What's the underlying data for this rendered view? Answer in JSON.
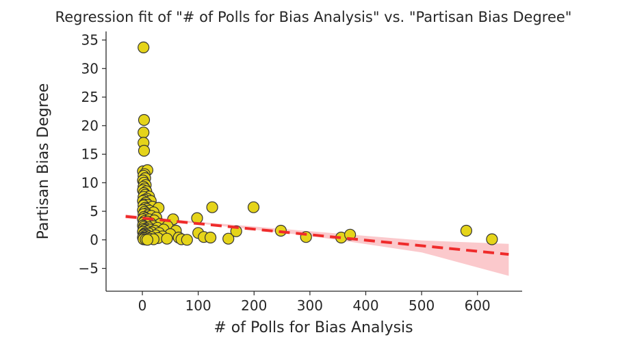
{
  "chart_data": {
    "type": "scatter",
    "title": "Regression fit of \"# of Polls for Bias Analysis\" vs. \"Partisan Bias Degree\"",
    "xlabel": "# of Polls for Bias Analysis",
    "ylabel": "Partisan Bias Degree",
    "xlim": [
      -65,
      680
    ],
    "ylim": [
      -9,
      36.5
    ],
    "xticks": [
      0,
      100,
      200,
      300,
      400,
      500,
      600
    ],
    "yticks": [
      -5,
      0,
      5,
      10,
      15,
      20,
      25,
      30,
      35
    ],
    "xtick_labels": [
      "0",
      "100",
      "200",
      "300",
      "400",
      "500",
      "600"
    ],
    "ytick_labels": [
      "−5",
      "0",
      "5",
      "10",
      "15",
      "20",
      "25",
      "30",
      "35"
    ],
    "grid": false,
    "legend": "none",
    "colors": {
      "point_fill": "#e5d41a",
      "point_edge": "#333333",
      "regression_line": "#ef2b2b",
      "confidence_band": "#fbc9cc"
    },
    "series": [
      {
        "kind": "points",
        "points": [
          [
            2,
            33.7
          ],
          [
            3,
            21.0
          ],
          [
            2,
            18.8
          ],
          [
            2,
            17.0
          ],
          [
            3,
            15.6
          ],
          [
            1,
            12.0
          ],
          [
            9,
            12.2
          ],
          [
            4,
            11.5
          ],
          [
            2,
            11.2
          ],
          [
            5,
            10.8
          ],
          [
            1,
            10.4
          ],
          [
            3,
            10.0
          ],
          [
            6,
            9.6
          ],
          [
            2,
            9.3
          ],
          [
            4,
            9.0
          ],
          [
            1,
            8.7
          ],
          [
            7,
            8.5
          ],
          [
            3,
            8.2
          ],
          [
            5,
            7.9
          ],
          [
            12,
            7.6
          ],
          [
            2,
            7.5
          ],
          [
            8,
            7.2
          ],
          [
            4,
            7.0
          ],
          [
            1,
            6.8
          ],
          [
            15,
            6.8
          ],
          [
            6,
            6.5
          ],
          [
            3,
            6.2
          ],
          [
            10,
            6.1
          ],
          [
            2,
            6.0
          ],
          [
            18,
            5.8
          ],
          [
            5,
            5.6
          ],
          [
            29,
            5.6
          ],
          [
            8,
            5.4
          ],
          [
            1,
            5.2
          ],
          [
            13,
            5.1
          ],
          [
            4,
            4.9
          ],
          [
            20,
            4.8
          ],
          [
            7,
            4.6
          ],
          [
            2,
            4.5
          ],
          [
            10,
            4.3
          ],
          [
            16,
            4.2
          ],
          [
            3,
            4.0
          ],
          [
            25,
            3.9
          ],
          [
            6,
            3.8
          ],
          [
            1,
            3.6
          ],
          [
            12,
            3.6
          ],
          [
            21,
            3.4
          ],
          [
            4,
            3.3
          ],
          [
            9,
            3.2
          ],
          [
            55,
            3.6
          ],
          [
            2,
            3.0
          ],
          [
            15,
            2.9
          ],
          [
            32,
            2.8
          ],
          [
            5,
            2.7
          ],
          [
            8,
            2.6
          ],
          [
            1,
            2.5
          ],
          [
            19,
            2.4
          ],
          [
            45,
            2.4
          ],
          [
            3,
            2.3
          ],
          [
            11,
            2.2
          ],
          [
            27,
            2.1
          ],
          [
            6,
            2.0
          ],
          [
            2,
            1.9
          ],
          [
            14,
            1.8
          ],
          [
            38,
            1.8
          ],
          [
            4,
            1.7
          ],
          [
            22,
            1.6
          ],
          [
            9,
            1.5
          ],
          [
            60,
            1.6
          ],
          [
            1,
            1.4
          ],
          [
            17,
            1.3
          ],
          [
            30,
            1.2
          ],
          [
            5,
            1.2
          ],
          [
            12,
            1.1
          ],
          [
            3,
            1.0
          ],
          [
            50,
            1.0
          ],
          [
            7,
            0.9
          ],
          [
            2,
            0.8
          ],
          [
            24,
            0.8
          ],
          [
            10,
            0.7
          ],
          [
            36,
            0.6
          ],
          [
            4,
            0.6
          ],
          [
            16,
            0.5
          ],
          [
            1,
            0.4
          ],
          [
            65,
            0.4
          ],
          [
            8,
            0.4
          ],
          [
            28,
            0.3
          ],
          [
            3,
            0.3
          ],
          [
            44,
            0.2
          ],
          [
            13,
            0.2
          ],
          [
            2,
            0.1
          ],
          [
            20,
            0.1
          ],
          [
            6,
            0.05
          ],
          [
            70,
            0.1
          ],
          [
            9,
            0.0
          ],
          [
            80,
            0.0
          ],
          [
            98,
            3.8
          ],
          [
            125,
            5.7
          ],
          [
            199,
            5.7
          ],
          [
            100,
            1.2
          ],
          [
            110,
            0.5
          ],
          [
            122,
            0.4
          ],
          [
            154,
            0.2
          ],
          [
            168,
            1.5
          ],
          [
            248,
            1.6
          ],
          [
            293,
            0.5
          ],
          [
            356,
            0.4
          ],
          [
            372,
            0.9
          ],
          [
            580,
            1.6
          ],
          [
            626,
            0.1
          ]
        ]
      },
      {
        "kind": "regression_line",
        "points": [
          [
            -30,
            4.1
          ],
          [
            656,
            -2.55
          ]
        ]
      },
      {
        "kind": "confidence_band",
        "upper": [
          [
            -30,
            4.45
          ],
          [
            100,
            3.15
          ],
          [
            300,
            1.5
          ],
          [
            500,
            -0.1
          ],
          [
            656,
            -0.7
          ]
        ],
        "lower": [
          [
            -30,
            3.75
          ],
          [
            100,
            2.85
          ],
          [
            300,
            0.7
          ],
          [
            500,
            -2.2
          ],
          [
            656,
            -6.3
          ]
        ]
      }
    ]
  }
}
